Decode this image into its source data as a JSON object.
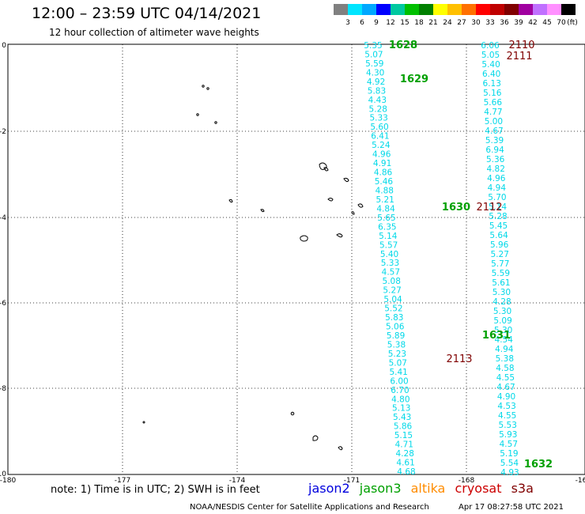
{
  "header": {
    "title": "12:00 – 23:59 UTC 04/14/2021",
    "subtitle": "12 hour collection of altimeter wave heights"
  },
  "colorbar": {
    "labels": [
      "3",
      "6",
      "9",
      "12",
      "15",
      "18",
      "21",
      "24",
      "27",
      "30",
      "33",
      "36",
      "39",
      "42",
      "45",
      "70",
      "(ft)"
    ],
    "colors": [
      "#808080",
      "#00e5ff",
      "#00a8ff",
      "#0000ff",
      "#00c8a0",
      "#00c000",
      "#008000",
      "#ffff00",
      "#ffc000",
      "#ff7000",
      "#ff0000",
      "#c00000",
      "#800000",
      "#a000a0",
      "#c070ff",
      "#ff90ff",
      "#000000"
    ]
  },
  "axes": {
    "x_ticks": [
      "-180",
      "-177",
      "-174",
      "-171",
      "-168",
      "-16"
    ],
    "y_ticks": [
      "0",
      "-2",
      "-4",
      "-6",
      "-8",
      "-10"
    ]
  },
  "tracks": [
    {
      "name": "jason3-descending",
      "color": "#00d8e8",
      "values": [
        "5.35",
        "5.07",
        "5.59",
        "4.30",
        "4.92",
        "5.83",
        "4.43",
        "5.28",
        "5.33",
        "5.60",
        "6.41",
        "5.24",
        "4.96",
        "4.91",
        "4.86",
        "5.46",
        "4.88",
        "5.21",
        "4.84",
        "5.65",
        "6.35",
        "5.14",
        "5.57",
        "5.40",
        "5.33",
        "4.57",
        "5.08",
        "5.27",
        "5.04",
        "5.52",
        "5.83",
        "5.06",
        "5.89",
        "5.38",
        "5.23",
        "5.07",
        "5.41",
        "6.00",
        "6.70",
        "4.80",
        "5.13",
        "5.43",
        "5.86",
        "5.15",
        "4.71",
        "4.28",
        "4.61",
        "4.68"
      ]
    },
    {
      "name": "cryosat-ascending",
      "color": "#00d8e8",
      "values": [
        "6.06",
        "5.05",
        "5.40",
        "6.40",
        "6.13",
        "5.16",
        "5.66",
        "4.77",
        "5.00",
        "4.67",
        "5.39",
        "6.94",
        "5.36",
        "4.82",
        "4.96",
        "4.94",
        "5.70",
        "5.14",
        "5.28",
        "5.45",
        "5.64",
        "5.96",
        "5.27",
        "5.77",
        "5.59",
        "5.61",
        "5.30",
        "4.28",
        "5.30",
        "5.09",
        "5.30",
        "4.54",
        "4.94",
        "5.38",
        "4.58",
        "4.55",
        "4.67",
        "4.90",
        "4.53",
        "4.55",
        "5.53",
        "5.93",
        "4.57",
        "5.19",
        "5.54",
        "4.93"
      ]
    }
  ],
  "time_labels": [
    {
      "text": "1628",
      "satellite": "jason3"
    },
    {
      "text": "1629",
      "satellite": "jason3"
    },
    {
      "text": "1630",
      "satellite": "jason3"
    },
    {
      "text": "1631",
      "satellite": "jason3"
    },
    {
      "text": "1632",
      "satellite": "jason3"
    },
    {
      "text": "2110",
      "satellite": "cryosat"
    },
    {
      "text": "2111",
      "satellite": "cryosat"
    },
    {
      "text": "2112",
      "satellite": "cryosat"
    },
    {
      "text": "2113",
      "satellite": "cryosat"
    }
  ],
  "satellite_colors": {
    "jason2": "#0000dd",
    "jason3": "#00a000",
    "altika": "#ff8c00",
    "cryosat": "#cc0000",
    "s3a": "#800000",
    "cryosat_labels": "#800000"
  },
  "footer": {
    "note": "note:  1) Time is in UTC;  2) SWH is in feet",
    "satellites": [
      "jason2",
      "jason3",
      "altika",
      "cryosat",
      "s3a"
    ],
    "credit": "NOAA/NESDIS Center for Satellite Applications and Research",
    "timestamp": "Apr 17 08:27:58 UTC 2021"
  }
}
